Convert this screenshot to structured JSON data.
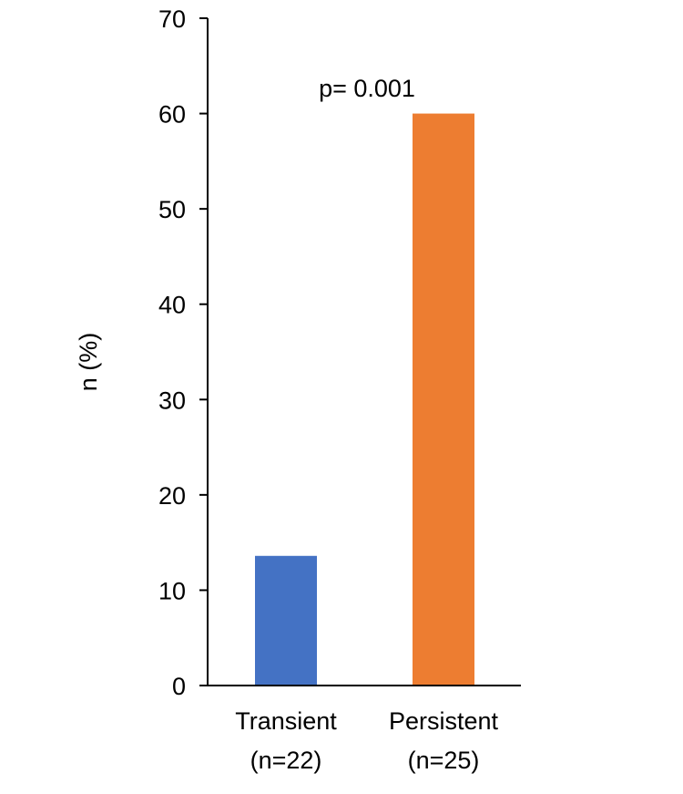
{
  "chart_data": {
    "type": "bar",
    "title": "",
    "xlabel": "",
    "ylabel": "n (%)",
    "ylim": [
      0,
      70
    ],
    "yticks": [
      0,
      10,
      20,
      30,
      40,
      50,
      60,
      70
    ],
    "categories": [
      {
        "label_line1": "Transient",
        "label_line2": "(n=22)"
      },
      {
        "label_line1": "Persistent",
        "label_line2": "(n=25)"
      }
    ],
    "values": [
      13.6,
      60
    ],
    "colors": [
      "#4472c4",
      "#ed7d31"
    ],
    "annotation": "p= 0.001",
    "grid": false,
    "legend": "none"
  }
}
